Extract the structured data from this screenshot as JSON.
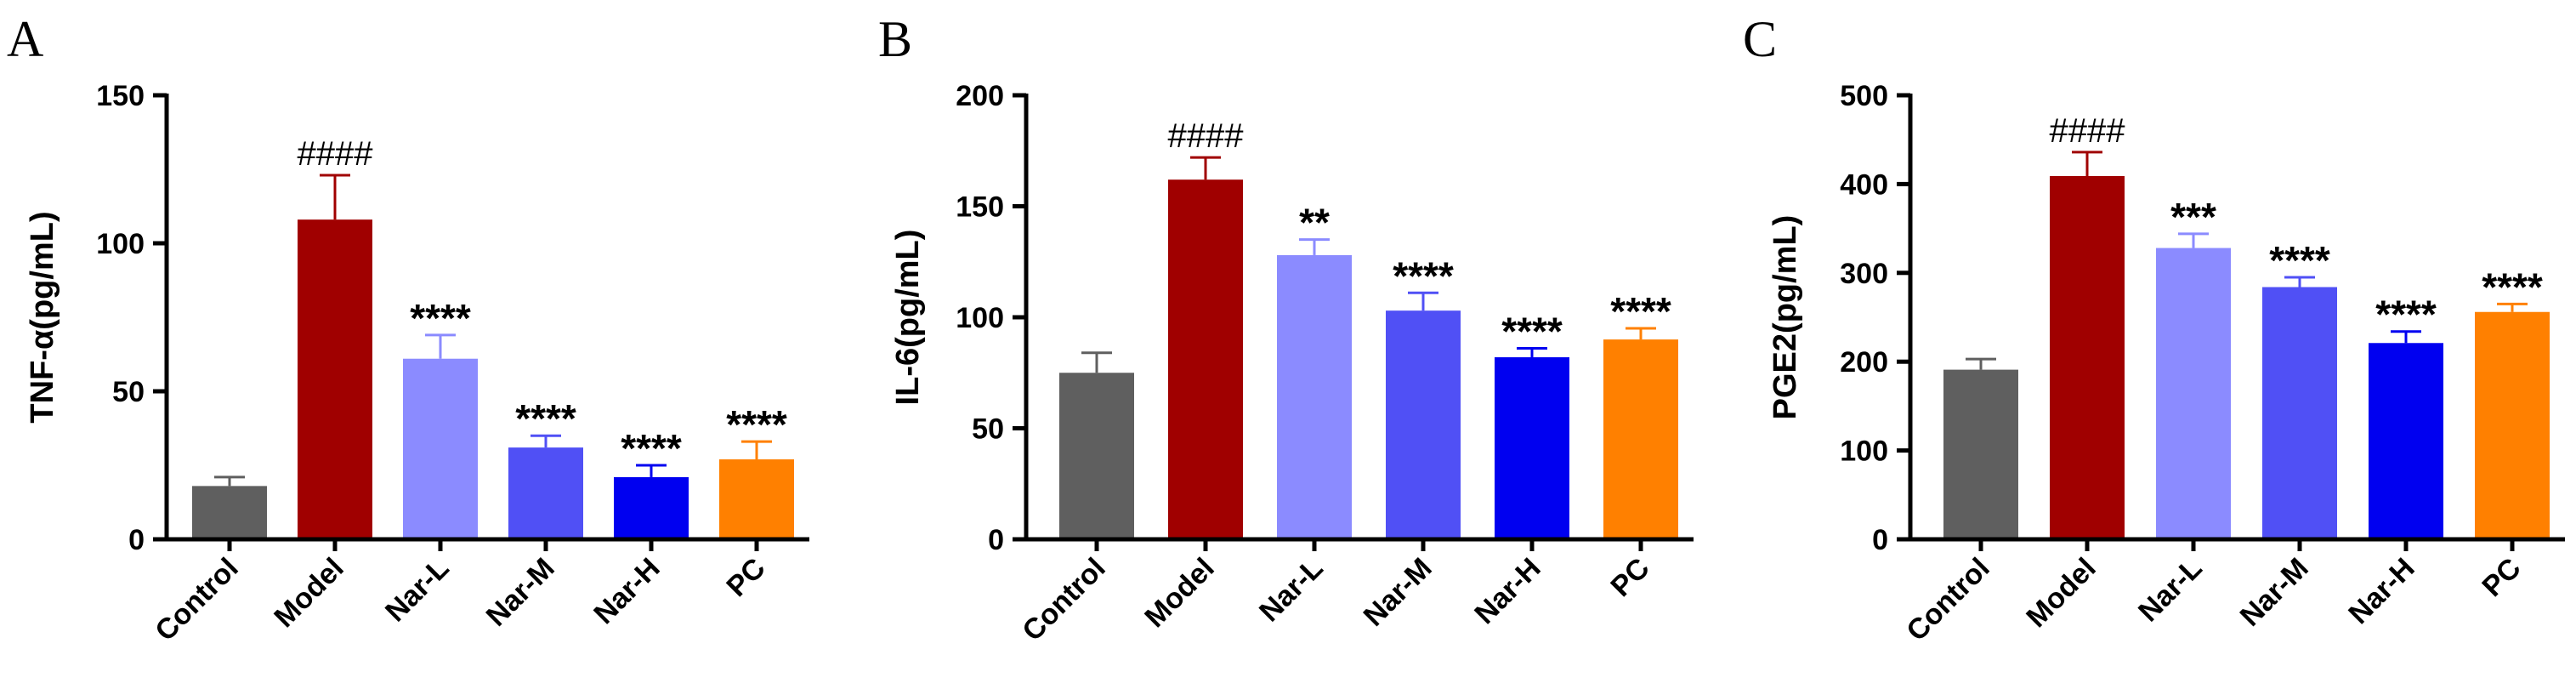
{
  "chart_data": [
    {
      "type": "bar",
      "panel": "A",
      "ylabel": "TNF-α(pg/mL)",
      "ylim": [
        0,
        150
      ],
      "yticks": [
        0,
        50,
        100,
        150
      ],
      "categories": [
        "Control",
        "Model",
        "Nar-L",
        "Nar-M",
        "Nar-H",
        "PC"
      ],
      "values": [
        18,
        108,
        61,
        31,
        21,
        27
      ],
      "errors": [
        3,
        15,
        8,
        4,
        4,
        6
      ],
      "significance": [
        "",
        "####",
        "****",
        "****",
        "****",
        "****"
      ],
      "colors": [
        "#5f5f5f",
        "#a00000",
        "#8b8bff",
        "#5050f5",
        "#0000f0",
        "#ff8000"
      ]
    },
    {
      "type": "bar",
      "panel": "B",
      "ylabel": "IL-6(pg/mL)",
      "ylim": [
        0,
        200
      ],
      "yticks": [
        0,
        50,
        100,
        150,
        200
      ],
      "categories": [
        "Control",
        "Model",
        "Nar-L",
        "Nar-M",
        "Nar-H",
        "PC"
      ],
      "values": [
        75,
        162,
        128,
        103,
        82,
        90
      ],
      "errors": [
        9,
        10,
        7,
        8,
        4,
        5
      ],
      "significance": [
        "",
        "####",
        "**",
        "****",
        "****",
        "****"
      ],
      "colors": [
        "#5f5f5f",
        "#a00000",
        "#8b8bff",
        "#5050f5",
        "#0000f0",
        "#ff8000"
      ]
    },
    {
      "type": "bar",
      "panel": "C",
      "ylabel": "PGE2(pg/mL)",
      "ylim": [
        0,
        500
      ],
      "yticks": [
        0,
        100,
        200,
        300,
        400,
        500
      ],
      "categories": [
        "Control",
        "Model",
        "Nar-L",
        "Nar-M",
        "Nar-H",
        "PC"
      ],
      "values": [
        191,
        409,
        328,
        284,
        221,
        256
      ],
      "errors": [
        12,
        27,
        16,
        11,
        13,
        9
      ],
      "significance": [
        "",
        "####",
        "***",
        "****",
        "****",
        "****"
      ],
      "colors": [
        "#5f5f5f",
        "#a00000",
        "#8b8bff",
        "#5050f5",
        "#0000f0",
        "#ff8000"
      ]
    }
  ]
}
